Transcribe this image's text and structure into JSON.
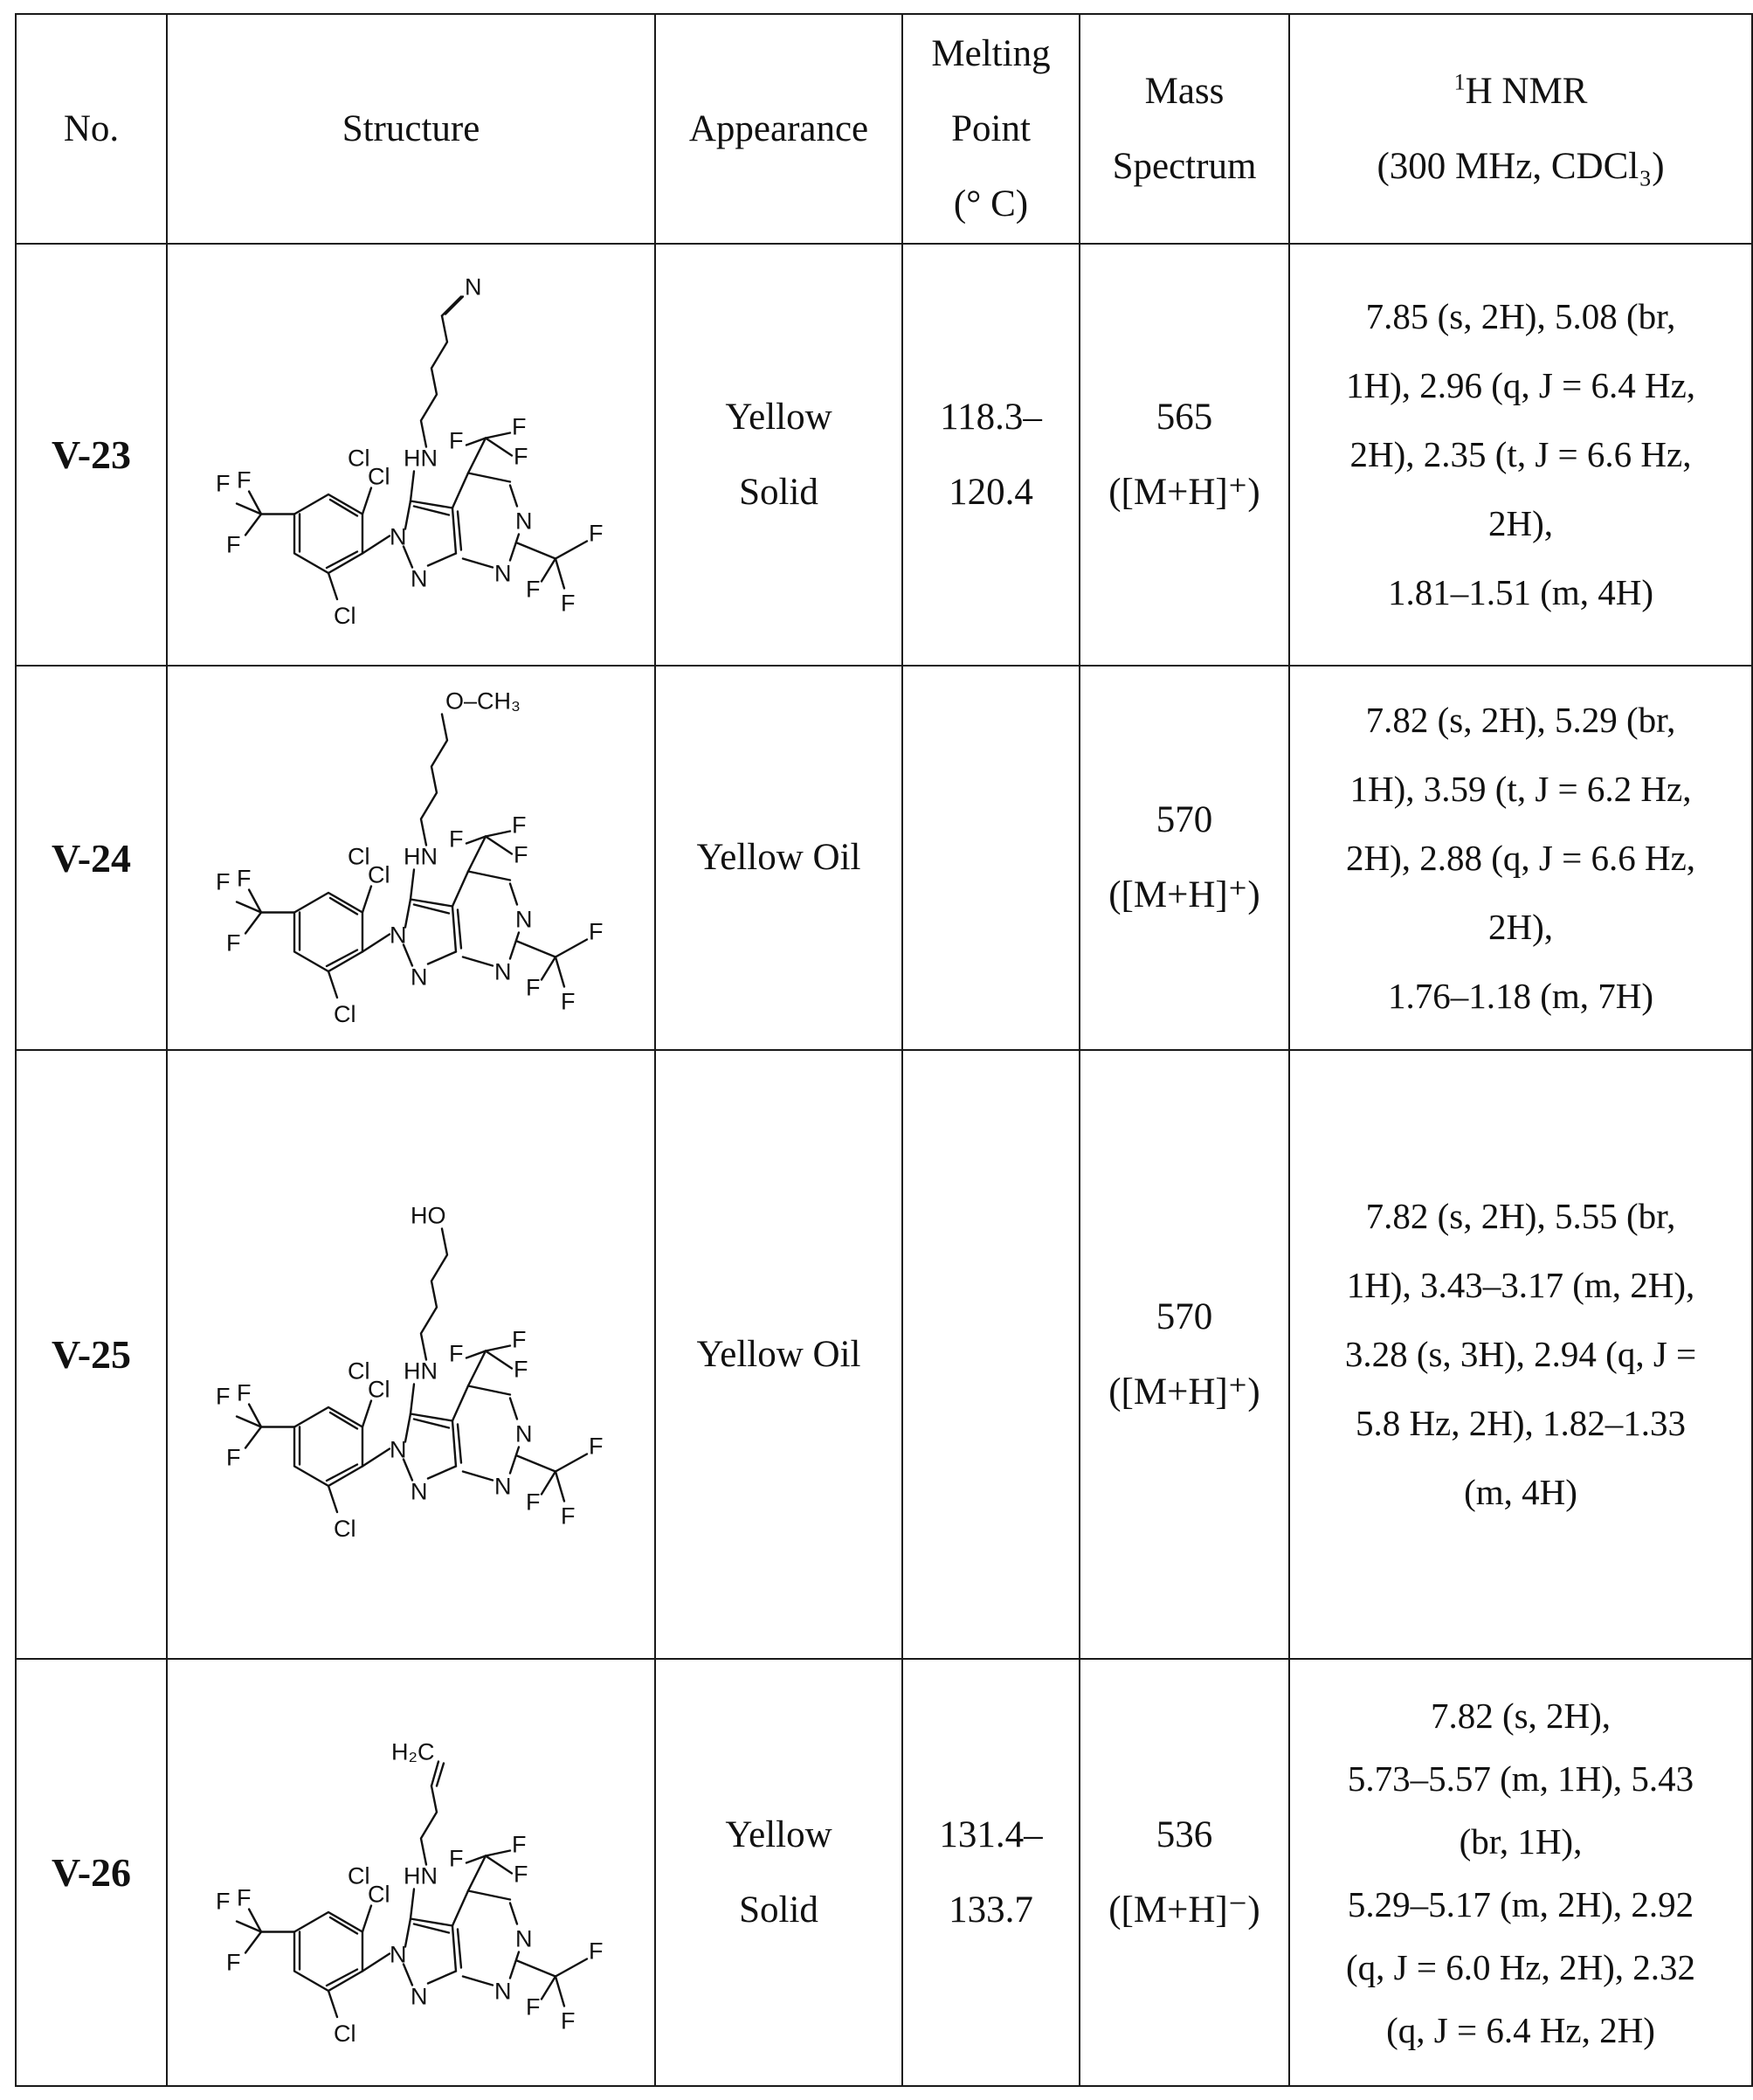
{
  "header": {
    "no": "No.",
    "structure": "Structure",
    "appearance": "Appearance",
    "melting_point": [
      "Melting",
      "Point",
      "(° C)"
    ],
    "mass_spectrum": [
      "Mass",
      "Spectrum"
    ],
    "nmr_sup": "1",
    "nmr_title": "H NMR",
    "nmr_conditions": "(300 MHz, CDCl₃)"
  },
  "rows": [
    {
      "no": "V-23",
      "appearance": [
        "Yellow",
        "Solid"
      ],
      "mp": [
        "118.3–",
        "120.4"
      ],
      "ms_value": "565",
      "ms_ion": "([M+H]⁺)",
      "nmr": [
        "7.85 (s, 2H), 5.08 (br,",
        "1H), 2.96 (q, J = 6.4 Hz,",
        "2H), 2.35 (t, J = 6.6 Hz,",
        "2H),",
        "1.81–1.51 (m, 4H)"
      ],
      "chain_label": "N"
    },
    {
      "no": "V-24",
      "appearance": [
        "Yellow Oil"
      ],
      "mp": [],
      "ms_value": "570",
      "ms_ion": "([M+H]⁺)",
      "nmr": [
        "7.82 (s, 2H), 5.29 (br,",
        "1H), 3.59 (t, J = 6.2 Hz,",
        "2H), 2.88 (q, J = 6.6 Hz,",
        "2H),",
        "1.76–1.18 (m, 7H)"
      ],
      "chain_label": "O–CH₃"
    },
    {
      "no": "V-25",
      "appearance": [
        "Yellow Oil"
      ],
      "mp": [],
      "ms_value": "570",
      "ms_ion": "([M+H]⁺)",
      "nmr": [
        "7.82 (s, 2H), 5.55 (br,",
        "1H), 3.43–3.17 (m, 2H),",
        "3.28 (s, 3H), 2.94 (q, J =",
        "5.8 Hz, 2H), 1.82–1.33",
        "(m, 4H)"
      ],
      "chain_label": "HO"
    },
    {
      "no": "V-26",
      "appearance": [
        "Yellow",
        "Solid"
      ],
      "mp": [
        "131.4–",
        "133.7"
      ],
      "ms_value": "536",
      "ms_ion": "([M+H]⁻)",
      "nmr": [
        "7.82 (s, 2H),",
        "5.73–5.57 (m, 1H), 5.43",
        "(br, 1H),",
        "5.29–5.17 (m, 2H), 2.92",
        "(q, J = 6.0 Hz, 2H), 2.32",
        "(q, J = 6.4 Hz, 2H)"
      ],
      "chain_label": "H₂C"
    }
  ],
  "molecule_labels": {
    "cl": "Cl",
    "hn": "HN",
    "n": "N",
    "f": "F"
  }
}
